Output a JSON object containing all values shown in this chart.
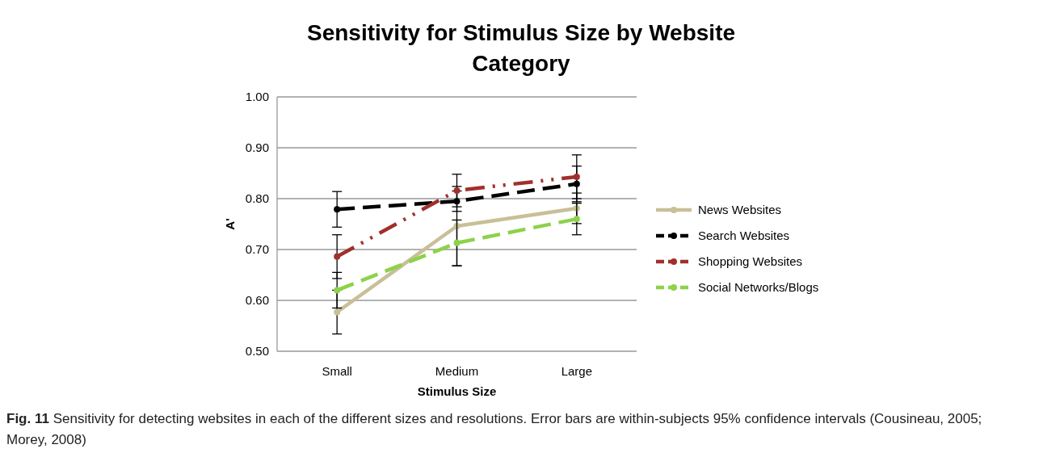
{
  "chart_data": {
    "type": "line",
    "title": "Sensitivity for Stimulus Size by Website Category",
    "xlabel": "Stimulus Size",
    "ylabel": "A'",
    "categories": [
      "Small",
      "Medium",
      "Large"
    ],
    "series": [
      {
        "name": "News Websites",
        "color": "#c9bf98",
        "values": [
          0.577,
          0.746,
          0.781
        ],
        "errors": [
          0.043,
          0.078,
          0.03
        ],
        "line_style": "solid"
      },
      {
        "name": "Search Websites",
        "color": "#000000",
        "values": [
          0.779,
          0.795,
          0.829
        ],
        "errors": [
          0.035,
          0.02,
          0.035
        ],
        "line_style": "dashed"
      },
      {
        "name": "Shopping Websites",
        "color": "#a0302d",
        "values": [
          0.686,
          0.816,
          0.843
        ],
        "errors": [
          0.043,
          0.032,
          0.043
        ],
        "line_style": "dotted"
      },
      {
        "name": "Social Networks/Blogs",
        "color": "#8cd24a",
        "values": [
          0.62,
          0.713,
          0.76
        ],
        "errors": [
          0.035,
          0.045,
          0.031
        ],
        "line_style": "dashed"
      }
    ],
    "ylim": [
      0.5,
      1.0
    ],
    "yticks": [
      {
        "value": 0.5,
        "label": "0.50"
      },
      {
        "value": 0.6,
        "label": "0.60"
      },
      {
        "value": 0.7,
        "label": "0.70"
      },
      {
        "value": 0.8,
        "label": "0.80"
      },
      {
        "value": 0.9,
        "label": "0.90"
      },
      {
        "value": 1.0,
        "label": "1.00"
      }
    ],
    "grid": "y",
    "legend": "right",
    "marker": "circle",
    "annotations": [
      "Fig. 11 Sensitivity for detecting websites in each of the different sizes and resolutions. Error bars are within-subjects 95% confidence intervals (Cousineau, 2005; Morey, 2008)"
    ]
  }
}
